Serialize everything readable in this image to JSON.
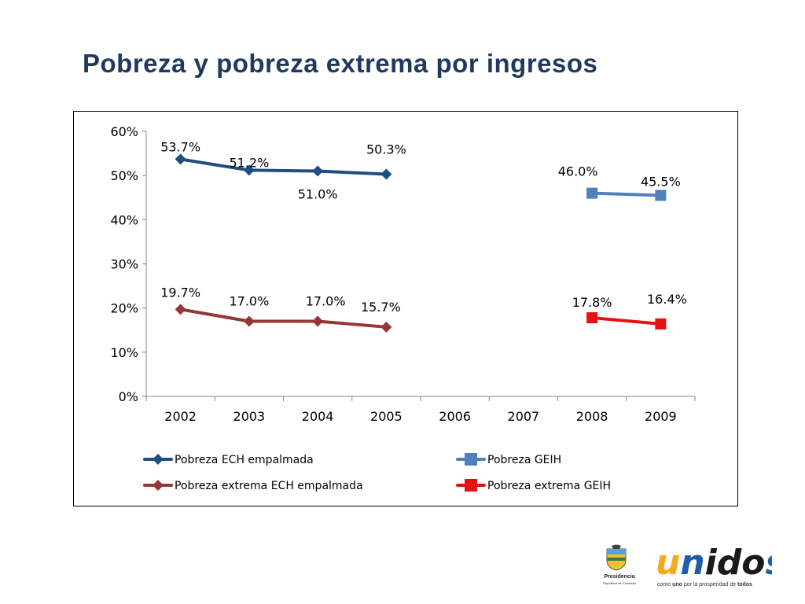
{
  "slide": {
    "title": "Pobreza y pobreza extrema por ingresos"
  },
  "chart_data": {
    "type": "line",
    "x": [
      "2002",
      "2003",
      "2004",
      "2005",
      "2006",
      "2007",
      "2008",
      "2009"
    ],
    "xtick_labels": [
      "2002",
      "2003",
      "2004",
      "2005",
      "2006",
      "2007",
      "2008",
      "2009"
    ],
    "ylim": [
      0,
      60
    ],
    "yticks": [
      0,
      10,
      20,
      30,
      40,
      50,
      60
    ],
    "ytick_labels": [
      "0%",
      "10%",
      "20%",
      "30%",
      "40%",
      "50%",
      "60%"
    ],
    "grid": false,
    "legend_position": "bottom",
    "series": [
      {
        "name": "Pobreza ECH empalmada",
        "color": "#1f4e80",
        "marker": "diamond",
        "points": [
          {
            "x": "2002",
            "y": 53.7,
            "label": "53.7%"
          },
          {
            "x": "2003",
            "y": 51.2,
            "label": "51.2%"
          },
          {
            "x": "2004",
            "y": 51.0,
            "label": "51.0%"
          },
          {
            "x": "2005",
            "y": 50.3,
            "label": "50.3%"
          }
        ]
      },
      {
        "name": "Pobreza GEIH",
        "color": "#4f81bd",
        "marker": "square",
        "points": [
          {
            "x": "2008",
            "y": 46.0,
            "label": "46.0%"
          },
          {
            "x": "2009",
            "y": 45.5,
            "label": "45.5%"
          }
        ]
      },
      {
        "name": "Pobreza extrema ECH empalmada",
        "color": "#953735",
        "marker": "diamond",
        "points": [
          {
            "x": "2002",
            "y": 19.7,
            "label": "19.7%"
          },
          {
            "x": "2003",
            "y": 17.0,
            "label": "17.0%"
          },
          {
            "x": "2004",
            "y": 17.0,
            "label": "17.0%"
          },
          {
            "x": "2005",
            "y": 15.7,
            "label": "15.7%"
          }
        ]
      },
      {
        "name": "Pobreza extrema GEIH",
        "color": "#e81010",
        "marker": "square",
        "points": [
          {
            "x": "2008",
            "y": 17.8,
            "label": "17.8%"
          },
          {
            "x": "2009",
            "y": 16.4,
            "label": "16.4%"
          }
        ]
      }
    ]
  },
  "footer": {
    "presidencia_label": "Presidencia",
    "presidencia_sub": "República de Colombia",
    "logo_u": "u",
    "logo_n": "n",
    "logo_ido": "ido",
    "logo_s": "s",
    "tagline_pre": "como ",
    "tagline_uno": "uno",
    "tagline_mid": " por la prosperidad de ",
    "tagline_todos": "todos",
    "colors": {
      "orange": "#f7a81b",
      "blue": "#1f5fa8",
      "dark": "#1a1a1a",
      "red": "#e3262b"
    }
  }
}
